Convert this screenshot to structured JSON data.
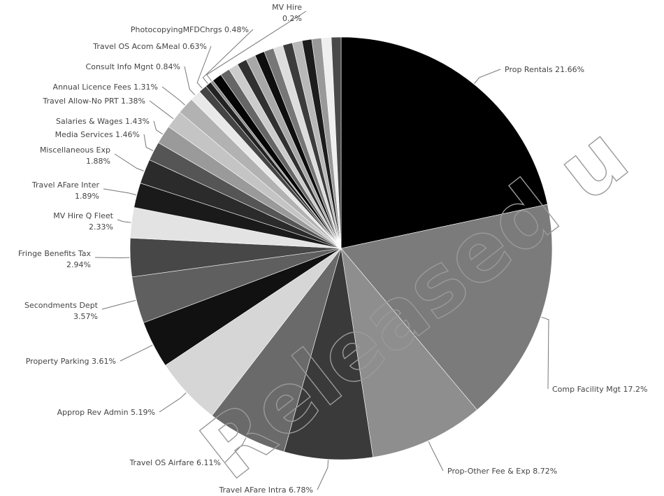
{
  "watermark": "Released u",
  "chart_data": {
    "type": "pie",
    "title": "",
    "slices": [
      {
        "label": "Prop Rentals",
        "pct_label": "21.66%",
        "value": 21.66,
        "color": "#000000"
      },
      {
        "label": "Comp Facility Mgt",
        "pct_label": "17.2%",
        "value": 17.2,
        "color": "#7b7b7b"
      },
      {
        "label": "Prop-Other Fee & Exp",
        "pct_label": "8.72%",
        "value": 8.72,
        "color": "#8e8e8e"
      },
      {
        "label": "Travel AFare Intra",
        "pct_label": "6.78%",
        "value": 6.78,
        "color": "#3a3a3a"
      },
      {
        "label": "Travel OS Airfare",
        "pct_label": "6.11%",
        "value": 6.11,
        "color": "#6a6a6a"
      },
      {
        "label": "Approp Rev Admin",
        "pct_label": "5.19%",
        "value": 5.19,
        "color": "#d6d6d6"
      },
      {
        "label": "Property Parking",
        "pct_label": "3.61%",
        "value": 3.61,
        "color": "#111111"
      },
      {
        "label": "Secondments Dept",
        "pct_label": "3.57%",
        "value": 3.57,
        "color": "#5f5f5f"
      },
      {
        "label": "Fringe Benefits Tax",
        "pct_label": "2.94%",
        "value": 2.94,
        "color": "#474747"
      },
      {
        "label": "MV Hire Q Fleet",
        "pct_label": "2.33%",
        "value": 2.33,
        "color": "#e3e3e3"
      },
      {
        "label": "Travel AFare Inter",
        "pct_label": "1.89%",
        "value": 1.89,
        "color": "#1a1a1a"
      },
      {
        "label": "Miscellaneous Exp",
        "pct_label": "1.88%",
        "value": 1.88,
        "color": "#2b2b2b"
      },
      {
        "label": "Media Services",
        "pct_label": "1.46%",
        "value": 1.46,
        "color": "#555555"
      },
      {
        "label": "Salaries & Wages",
        "pct_label": "1.43%",
        "value": 1.43,
        "color": "#9a9a9a"
      },
      {
        "label": "Travel Allow-No PRT",
        "pct_label": "1.38%",
        "value": 1.38,
        "color": "#c4c4c4"
      },
      {
        "label": "Annual Licence Fees",
        "pct_label": "1.31%",
        "value": 1.31,
        "color": "#b2b2b2"
      },
      {
        "label": "Consult Info Mgnt",
        "pct_label": "0.84%",
        "value": 0.84,
        "color": "#e8e8e8"
      },
      {
        "label": "Travel OS Acom &Meal",
        "pct_label": "0.63%",
        "value": 0.63,
        "color": "#444444"
      },
      {
        "label": "PhotocopyingMFDChrgs",
        "pct_label": "0.48%",
        "value": 0.48,
        "color": "#222222"
      },
      {
        "label": "MV Hire",
        "pct_label": "0.2%",
        "value": 0.2,
        "color": "#888888"
      }
    ],
    "unlabeled_small_slice_colors": [
      "#050505",
      "#666666",
      "#cccccc",
      "#303030",
      "#a8a8a8",
      "#0e0e0e",
      "#777777",
      "#dddddd",
      "#3c3c3c",
      "#b8b8b8",
      "#1c1c1c",
      "#999999",
      "#efefef",
      "#4a4a4a"
    ],
    "legend": "none",
    "data_labels": "outside with leader lines"
  }
}
